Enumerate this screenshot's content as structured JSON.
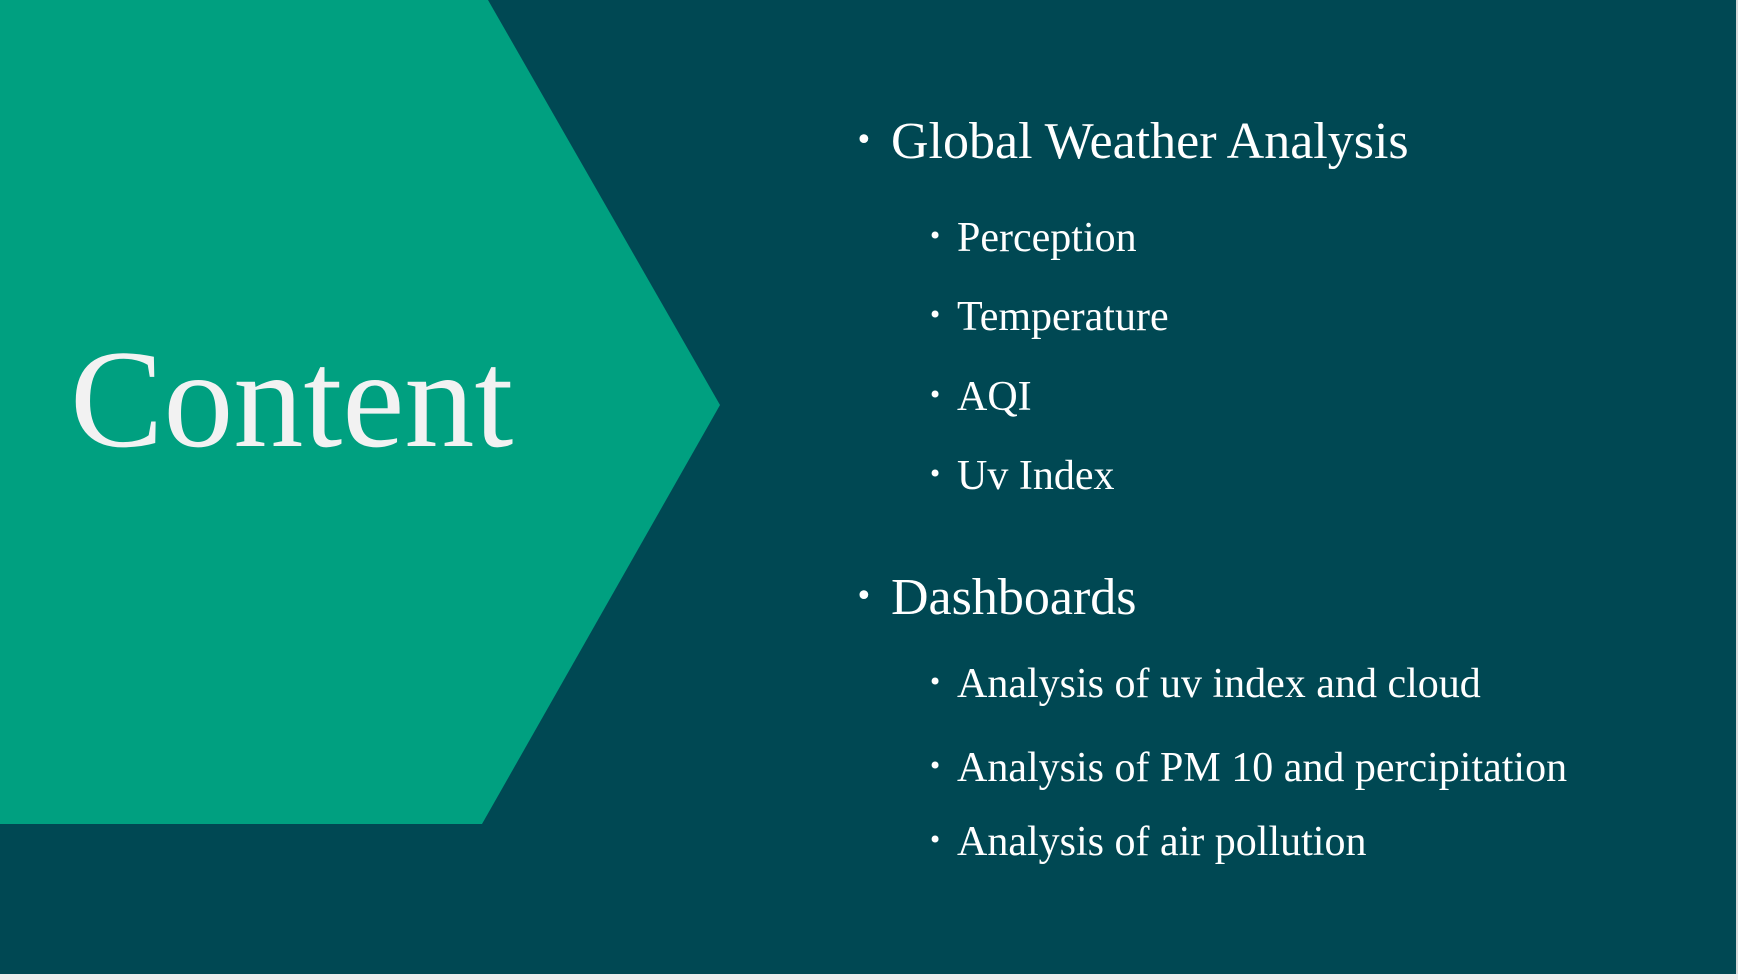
{
  "slide": {
    "title": "Content",
    "colors": {
      "background": "#004853",
      "chevron": "#00a080",
      "title_text": "#f2f2f2",
      "list_text": "#ffffff"
    },
    "sections": [
      {
        "heading": "Global Weather Analysis",
        "items": [
          "Perception",
          "Temperature",
          "AQI",
          "Uv Index"
        ]
      },
      {
        "heading": "Dashboards",
        "items": [
          "Analysis of uv index and cloud",
          "Analysis of PM 10 and percipitation",
          "Analysis of air pollution"
        ]
      }
    ]
  }
}
